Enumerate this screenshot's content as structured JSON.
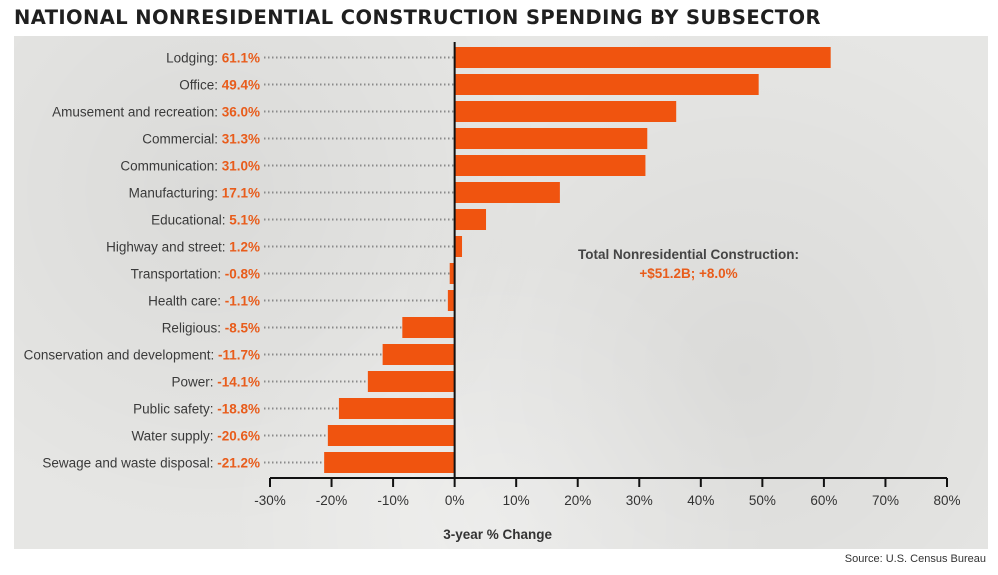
{
  "header": {
    "title": "NATIONAL NONRESIDENTIAL CONSTRUCTION SPENDING BY SUBSECTOR"
  },
  "footer": {
    "source": "Source: U.S. Census Bureau"
  },
  "colors": {
    "bar": "#f0540f",
    "value_text": "#e85c1b",
    "panel": "#e6e6e4"
  },
  "chart_data": {
    "type": "bar",
    "orientation": "horizontal",
    "categories": [
      "Lodging",
      "Office",
      "Amusement and recreation",
      "Commercial",
      "Communication",
      "Manufacturing",
      "Educational",
      "Highway and street",
      "Transportation",
      "Health care",
      "Religious",
      "Conservation and development",
      "Power",
      "Public safety",
      "Water supply",
      "Sewage and waste disposal"
    ],
    "values": [
      61.1,
      49.4,
      36.0,
      31.3,
      31.0,
      17.1,
      5.1,
      1.2,
      -0.8,
      -1.1,
      -8.5,
      -11.7,
      -14.1,
      -18.8,
      -20.6,
      -21.2
    ],
    "value_labels": [
      "61.1%",
      "49.4%",
      "36.0%",
      "31.3%",
      "31.0%",
      "17.1%",
      "5.1%",
      "1.2%",
      "-0.8%",
      "-1.1%",
      "-8.5%",
      "-11.7%",
      "-14.1%",
      "-18.8%",
      "-20.6%",
      "-21.2%"
    ],
    "xlabel": "3-year % Change",
    "xlim": [
      -30,
      80
    ],
    "xticks": [
      -30,
      -20,
      -10,
      0,
      10,
      20,
      30,
      40,
      50,
      60,
      70,
      80
    ],
    "xtick_labels": [
      "-30%",
      "-20%",
      "-10%",
      "0%",
      "10%",
      "20%",
      "30%",
      "40%",
      "50%",
      "60%",
      "70%",
      "80%"
    ],
    "annotation": {
      "line1": "Total Nonresidential Construction:",
      "line2": "+$51.2B; +8.0%"
    },
    "grid": false
  }
}
